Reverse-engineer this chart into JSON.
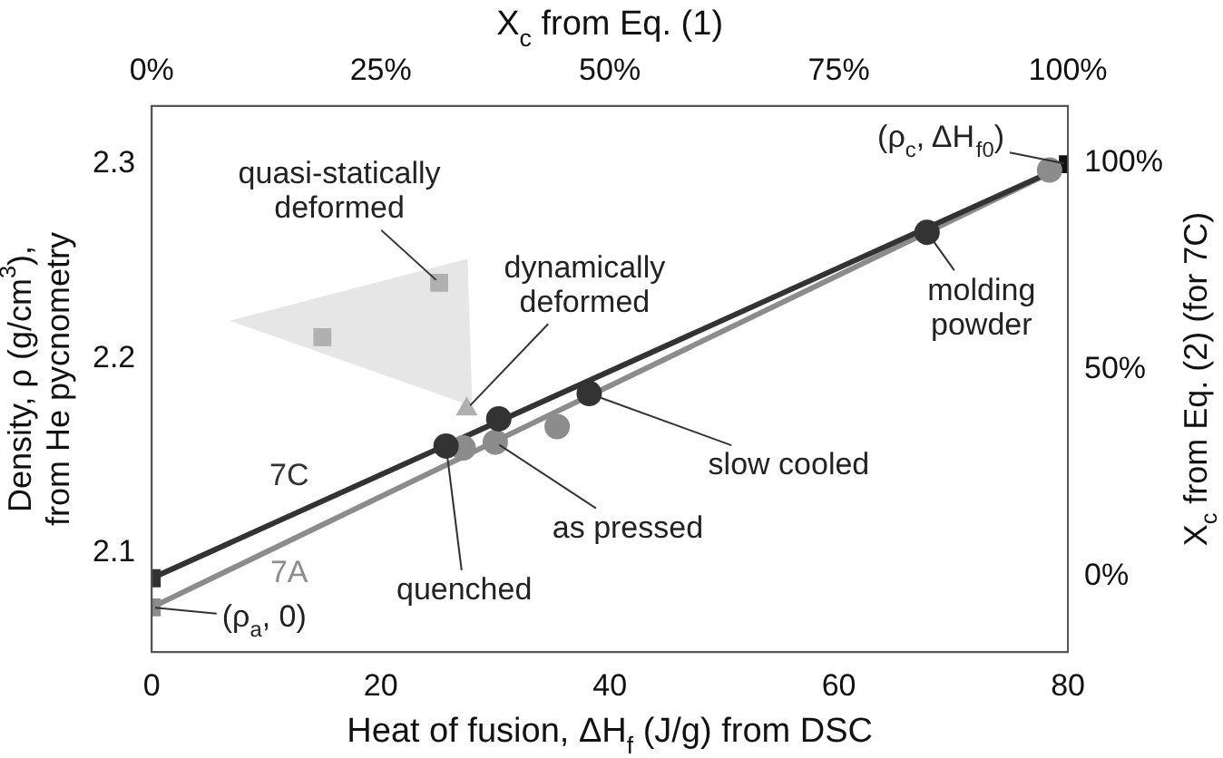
{
  "chart_data": {
    "type": "scatter",
    "xlabel": "Heat of fusion, ΔH$_{f}$ (J/g) from DSC",
    "ylabel": "Density, ρ (g/cm$^{3}$), from He pycnometry",
    "x2label": "X$_{c}$ from Eq. (1)",
    "y2label": "X$_{c}$ from Eq. (2) (for 7C)",
    "xlim": [
      0,
      80
    ],
    "xticks": [
      0,
      20,
      40,
      60,
      80
    ],
    "ylim": [
      2.049,
      2.33
    ],
    "yticks": [
      2.1,
      2.2,
      2.3
    ],
    "x2lim": [
      0,
      100
    ],
    "x2ticks": [
      {
        "value": 0,
        "label": "0%"
      },
      {
        "value": 25,
        "label": "25%"
      },
      {
        "value": 50,
        "label": "50%"
      },
      {
        "value": 75,
        "label": "75%"
      },
      {
        "value": 100,
        "label": "100%"
      }
    ],
    "y2lim": [
      -18.4,
      113.8
    ],
    "y2ticks": [
      {
        "value": 0,
        "label": "0%"
      },
      {
        "value": 50,
        "label": "50%"
      },
      {
        "value": 100,
        "label": "100%"
      }
    ],
    "grid": false,
    "legend": false,
    "series": [
      {
        "type": "line",
        "name": "7C",
        "color": "#333333",
        "marker": "none",
        "x": [
          0,
          80
        ],
        "values": [
          2.087,
          2.3
        ]
      },
      {
        "type": "line",
        "name": "7A",
        "color": "#8c8c8c",
        "marker": "none",
        "x": [
          0,
          80
        ],
        "values": [
          2.072,
          2.3
        ]
      },
      {
        "type": "scatter",
        "color": "#333333",
        "marker": "circle",
        "x": [
          25.7,
          30.3,
          38.2,
          67.7
        ],
        "values": [
          2.155,
          2.169,
          2.182,
          2.265
        ]
      },
      {
        "type": "scatter",
        "color": "#8c8c8c",
        "marker": "circle",
        "x": [
          27.2,
          30.0,
          35.4,
          78.4
        ],
        "values": [
          2.154,
          2.157,
          2.165,
          2.297
        ]
      },
      {
        "type": "scatter",
        "colors": [
          "#333333",
          "#8c8c8c",
          "#111111"
        ],
        "marker": "square",
        "x": [
          0,
          0,
          80
        ],
        "values": [
          2.087,
          2.072,
          2.3
        ]
      },
      {
        "type": "scatter",
        "color": "#b0b0b0",
        "marker": "square",
        "x": [
          14.9,
          25.1
        ],
        "values": [
          2.211,
          2.239
        ]
      },
      {
        "type": "scatter",
        "color": "#b0b0b0",
        "marker": "triangle",
        "x": [
          27.5
        ],
        "values": [
          2.174
        ]
      }
    ],
    "annotations": [
      {
        "text": "quasi-statically deformed",
        "x": 25.1,
        "y": 2.239
      },
      {
        "text": "dynamically deformed",
        "x": 27.5,
        "y": 2.174
      },
      {
        "text": "slow cooled",
        "x": 38.2,
        "y": 2.182
      },
      {
        "text": "as pressed",
        "x": 30.0,
        "y": 2.157
      },
      {
        "text": "quenched",
        "x": 25.7,
        "y": 2.155
      },
      {
        "text": "molding powder",
        "x": 67.7,
        "y": 2.265
      },
      {
        "text": "(ρ$_{c}$, ΔH$_{f0}$)",
        "x": 80,
        "y": 2.3
      },
      {
        "text": "(ρ$_{a}$, 0)",
        "x": 0,
        "y": 2.072
      }
    ]
  }
}
